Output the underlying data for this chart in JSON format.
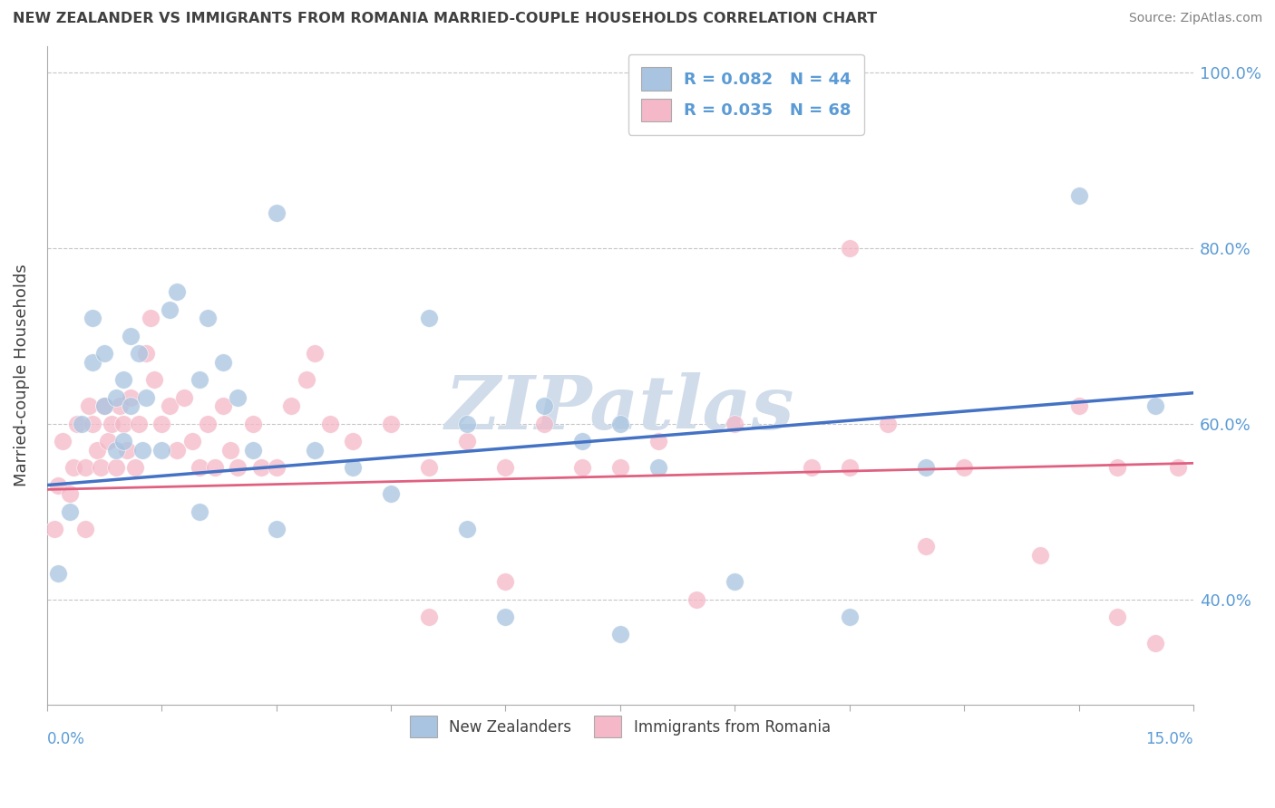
{
  "title": "NEW ZEALANDER VS IMMIGRANTS FROM ROMANIA MARRIED-COUPLE HOUSEHOLDS CORRELATION CHART",
  "source": "Source: ZipAtlas.com",
  "ylabel": "Married-couple Households",
  "xlim": [
    0.0,
    15.0
  ],
  "ylim": [
    28.0,
    103.0
  ],
  "yticks": [
    40.0,
    60.0,
    80.0,
    100.0
  ],
  "ytick_labels": [
    "40.0%",
    "60.0%",
    "80.0%",
    "100.0%"
  ],
  "legend_r1": "R = 0.082",
  "legend_n1": "N = 44",
  "legend_r2": "R = 0.035",
  "legend_n2": "N = 68",
  "color_blue": "#a8c4e0",
  "color_pink": "#f4b8c8",
  "color_blue_line": "#4472c4",
  "color_pink_line": "#e06080",
  "watermark_color": "#d0dcea",
  "blue_x": [
    0.15,
    0.3,
    0.45,
    0.6,
    0.6,
    0.75,
    0.75,
    0.9,
    0.9,
    1.0,
    1.0,
    1.1,
    1.1,
    1.2,
    1.25,
    1.3,
    1.5,
    1.6,
    1.7,
    2.0,
    2.1,
    2.3,
    2.5,
    2.7,
    3.0,
    3.5,
    4.0,
    5.0,
    5.5,
    6.5,
    7.0,
    7.5,
    8.0,
    9.0,
    10.5,
    11.5,
    13.5,
    14.5,
    2.0,
    3.0,
    4.5,
    5.5,
    6.0,
    7.5
  ],
  "blue_y": [
    43.0,
    50.0,
    60.0,
    67.0,
    72.0,
    62.0,
    68.0,
    57.0,
    63.0,
    65.0,
    58.0,
    62.0,
    70.0,
    68.0,
    57.0,
    63.0,
    57.0,
    73.0,
    75.0,
    65.0,
    72.0,
    67.0,
    63.0,
    57.0,
    84.0,
    57.0,
    55.0,
    72.0,
    60.0,
    62.0,
    58.0,
    60.0,
    55.0,
    42.0,
    38.0,
    55.0,
    86.0,
    62.0,
    50.0,
    48.0,
    52.0,
    48.0,
    38.0,
    36.0
  ],
  "pink_x": [
    0.1,
    0.15,
    0.2,
    0.3,
    0.35,
    0.4,
    0.5,
    0.5,
    0.55,
    0.6,
    0.65,
    0.7,
    0.75,
    0.8,
    0.85,
    0.9,
    0.95,
    1.0,
    1.05,
    1.1,
    1.15,
    1.2,
    1.3,
    1.35,
    1.4,
    1.5,
    1.6,
    1.7,
    1.8,
    1.9,
    2.0,
    2.1,
    2.2,
    2.3,
    2.4,
    2.5,
    2.7,
    2.8,
    3.0,
    3.2,
    3.4,
    3.5,
    3.7,
    4.0,
    4.5,
    5.0,
    5.5,
    6.0,
    6.5,
    7.0,
    7.5,
    8.0,
    9.0,
    10.0,
    10.5,
    11.0,
    12.0,
    13.5,
    14.0,
    14.5,
    5.0,
    6.0,
    8.5,
    10.5,
    11.5,
    13.0,
    14.0,
    14.8
  ],
  "pink_y": [
    48.0,
    53.0,
    58.0,
    52.0,
    55.0,
    60.0,
    48.0,
    55.0,
    62.0,
    60.0,
    57.0,
    55.0,
    62.0,
    58.0,
    60.0,
    55.0,
    62.0,
    60.0,
    57.0,
    63.0,
    55.0,
    60.0,
    68.0,
    72.0,
    65.0,
    60.0,
    62.0,
    57.0,
    63.0,
    58.0,
    55.0,
    60.0,
    55.0,
    62.0,
    57.0,
    55.0,
    60.0,
    55.0,
    55.0,
    62.0,
    65.0,
    68.0,
    60.0,
    58.0,
    60.0,
    55.0,
    58.0,
    55.0,
    60.0,
    55.0,
    55.0,
    58.0,
    60.0,
    55.0,
    55.0,
    60.0,
    55.0,
    62.0,
    55.0,
    35.0,
    38.0,
    42.0,
    40.0,
    80.0,
    46.0,
    45.0,
    38.0,
    55.0
  ],
  "blue_trend_x0": 0.0,
  "blue_trend_y0": 53.0,
  "blue_trend_x1": 15.0,
  "blue_trend_y1": 63.5,
  "pink_trend_x0": 0.0,
  "pink_trend_y0": 52.5,
  "pink_trend_x1": 15.0,
  "pink_trend_y1": 55.5
}
